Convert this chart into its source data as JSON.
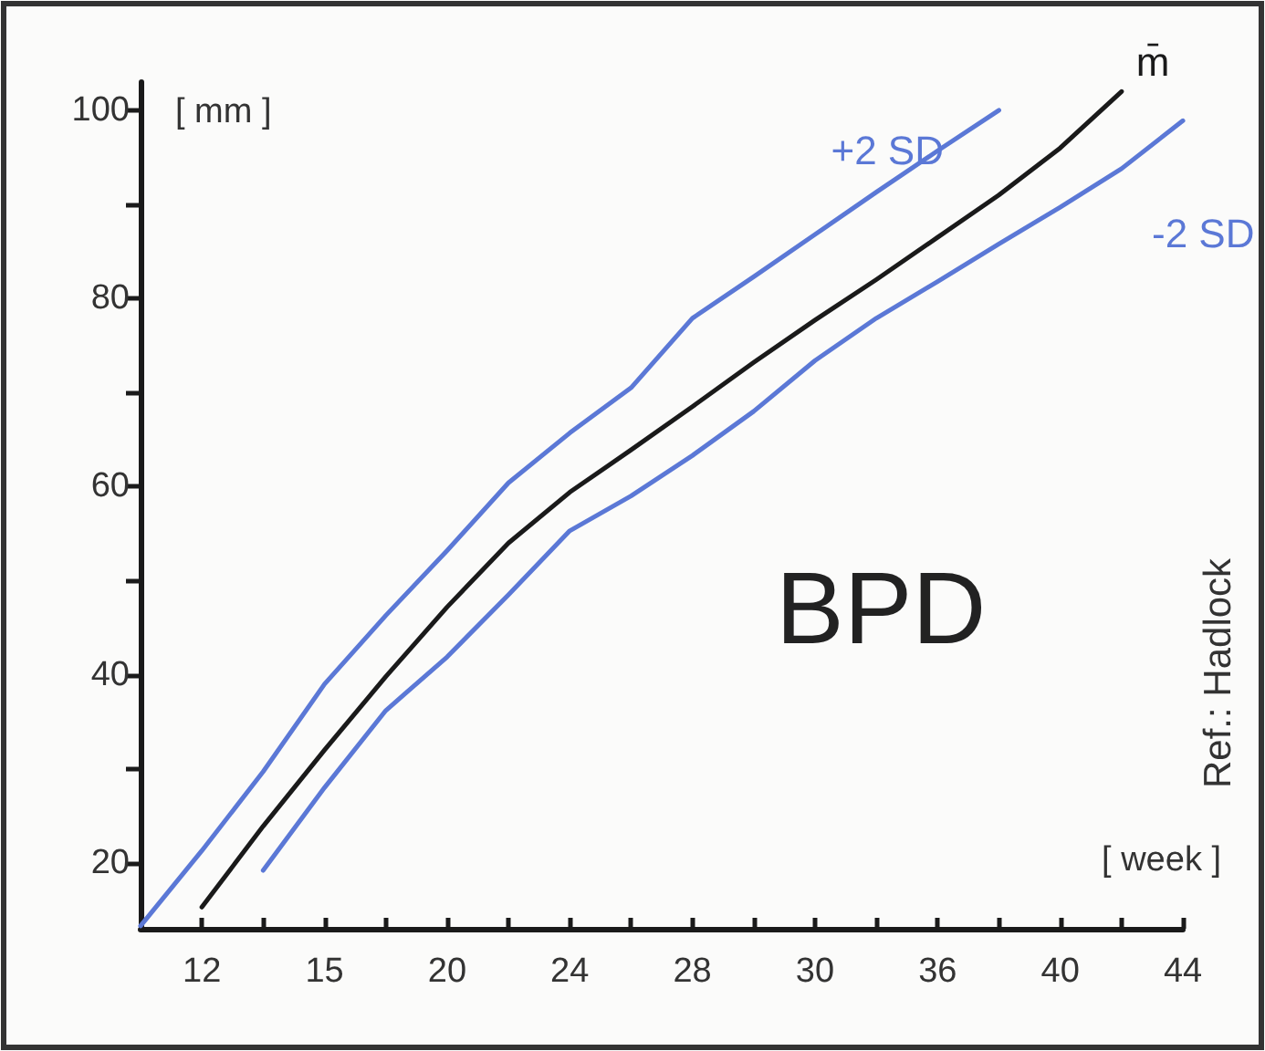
{
  "chart_data": {
    "type": "line",
    "title": "BPD",
    "xlabel": "[ week ]",
    "ylabel": "[ mm ]",
    "annotations": [
      "Ref.: Hadlock"
    ],
    "categories": [
      null,
      "12",
      null,
      "15",
      null,
      "20",
      null,
      "24",
      null,
      "28",
      null,
      "30",
      null,
      "36",
      null,
      "40",
      null,
      "44"
    ],
    "series": [
      {
        "name": "+2 SD",
        "color": "#5b78d6",
        "values": [
          13.3,
          21.3,
          29.7,
          39,
          46.3,
          53.2,
          60.4,
          65.7,
          70.5,
          77.9,
          82.3,
          86.8,
          91.3,
          95.7,
          100,
          null,
          null,
          null
        ]
      },
      {
        "name": "m̄",
        "color": "#1a1a1a",
        "values": [
          null,
          15.3,
          23.9,
          32,
          39.8,
          47.2,
          54,
          59.4,
          63.9,
          68.5,
          73.2,
          77.7,
          82,
          86.5,
          91,
          96,
          102,
          null
        ]
      },
      {
        "name": "-2 SD",
        "color": "#5b78d6",
        "values": [
          null,
          null,
          19.2,
          28,
          36.2,
          41.9,
          48.5,
          55.3,
          59,
          63.3,
          68,
          73.4,
          77.9,
          81.8,
          85.8,
          89.7,
          93.8,
          98.9
        ]
      }
    ],
    "ylim": [
      13,
      103
    ],
    "yticks": [
      20,
      {
        "value": 30,
        "label": null
      },
      40,
      {
        "value": 50,
        "label": null
      },
      60,
      {
        "value": 70,
        "label": null
      },
      80,
      {
        "value": 90,
        "label": null
      },
      100
    ],
    "grid": false,
    "legend": false,
    "marker": "none",
    "line_style": "solid"
  }
}
